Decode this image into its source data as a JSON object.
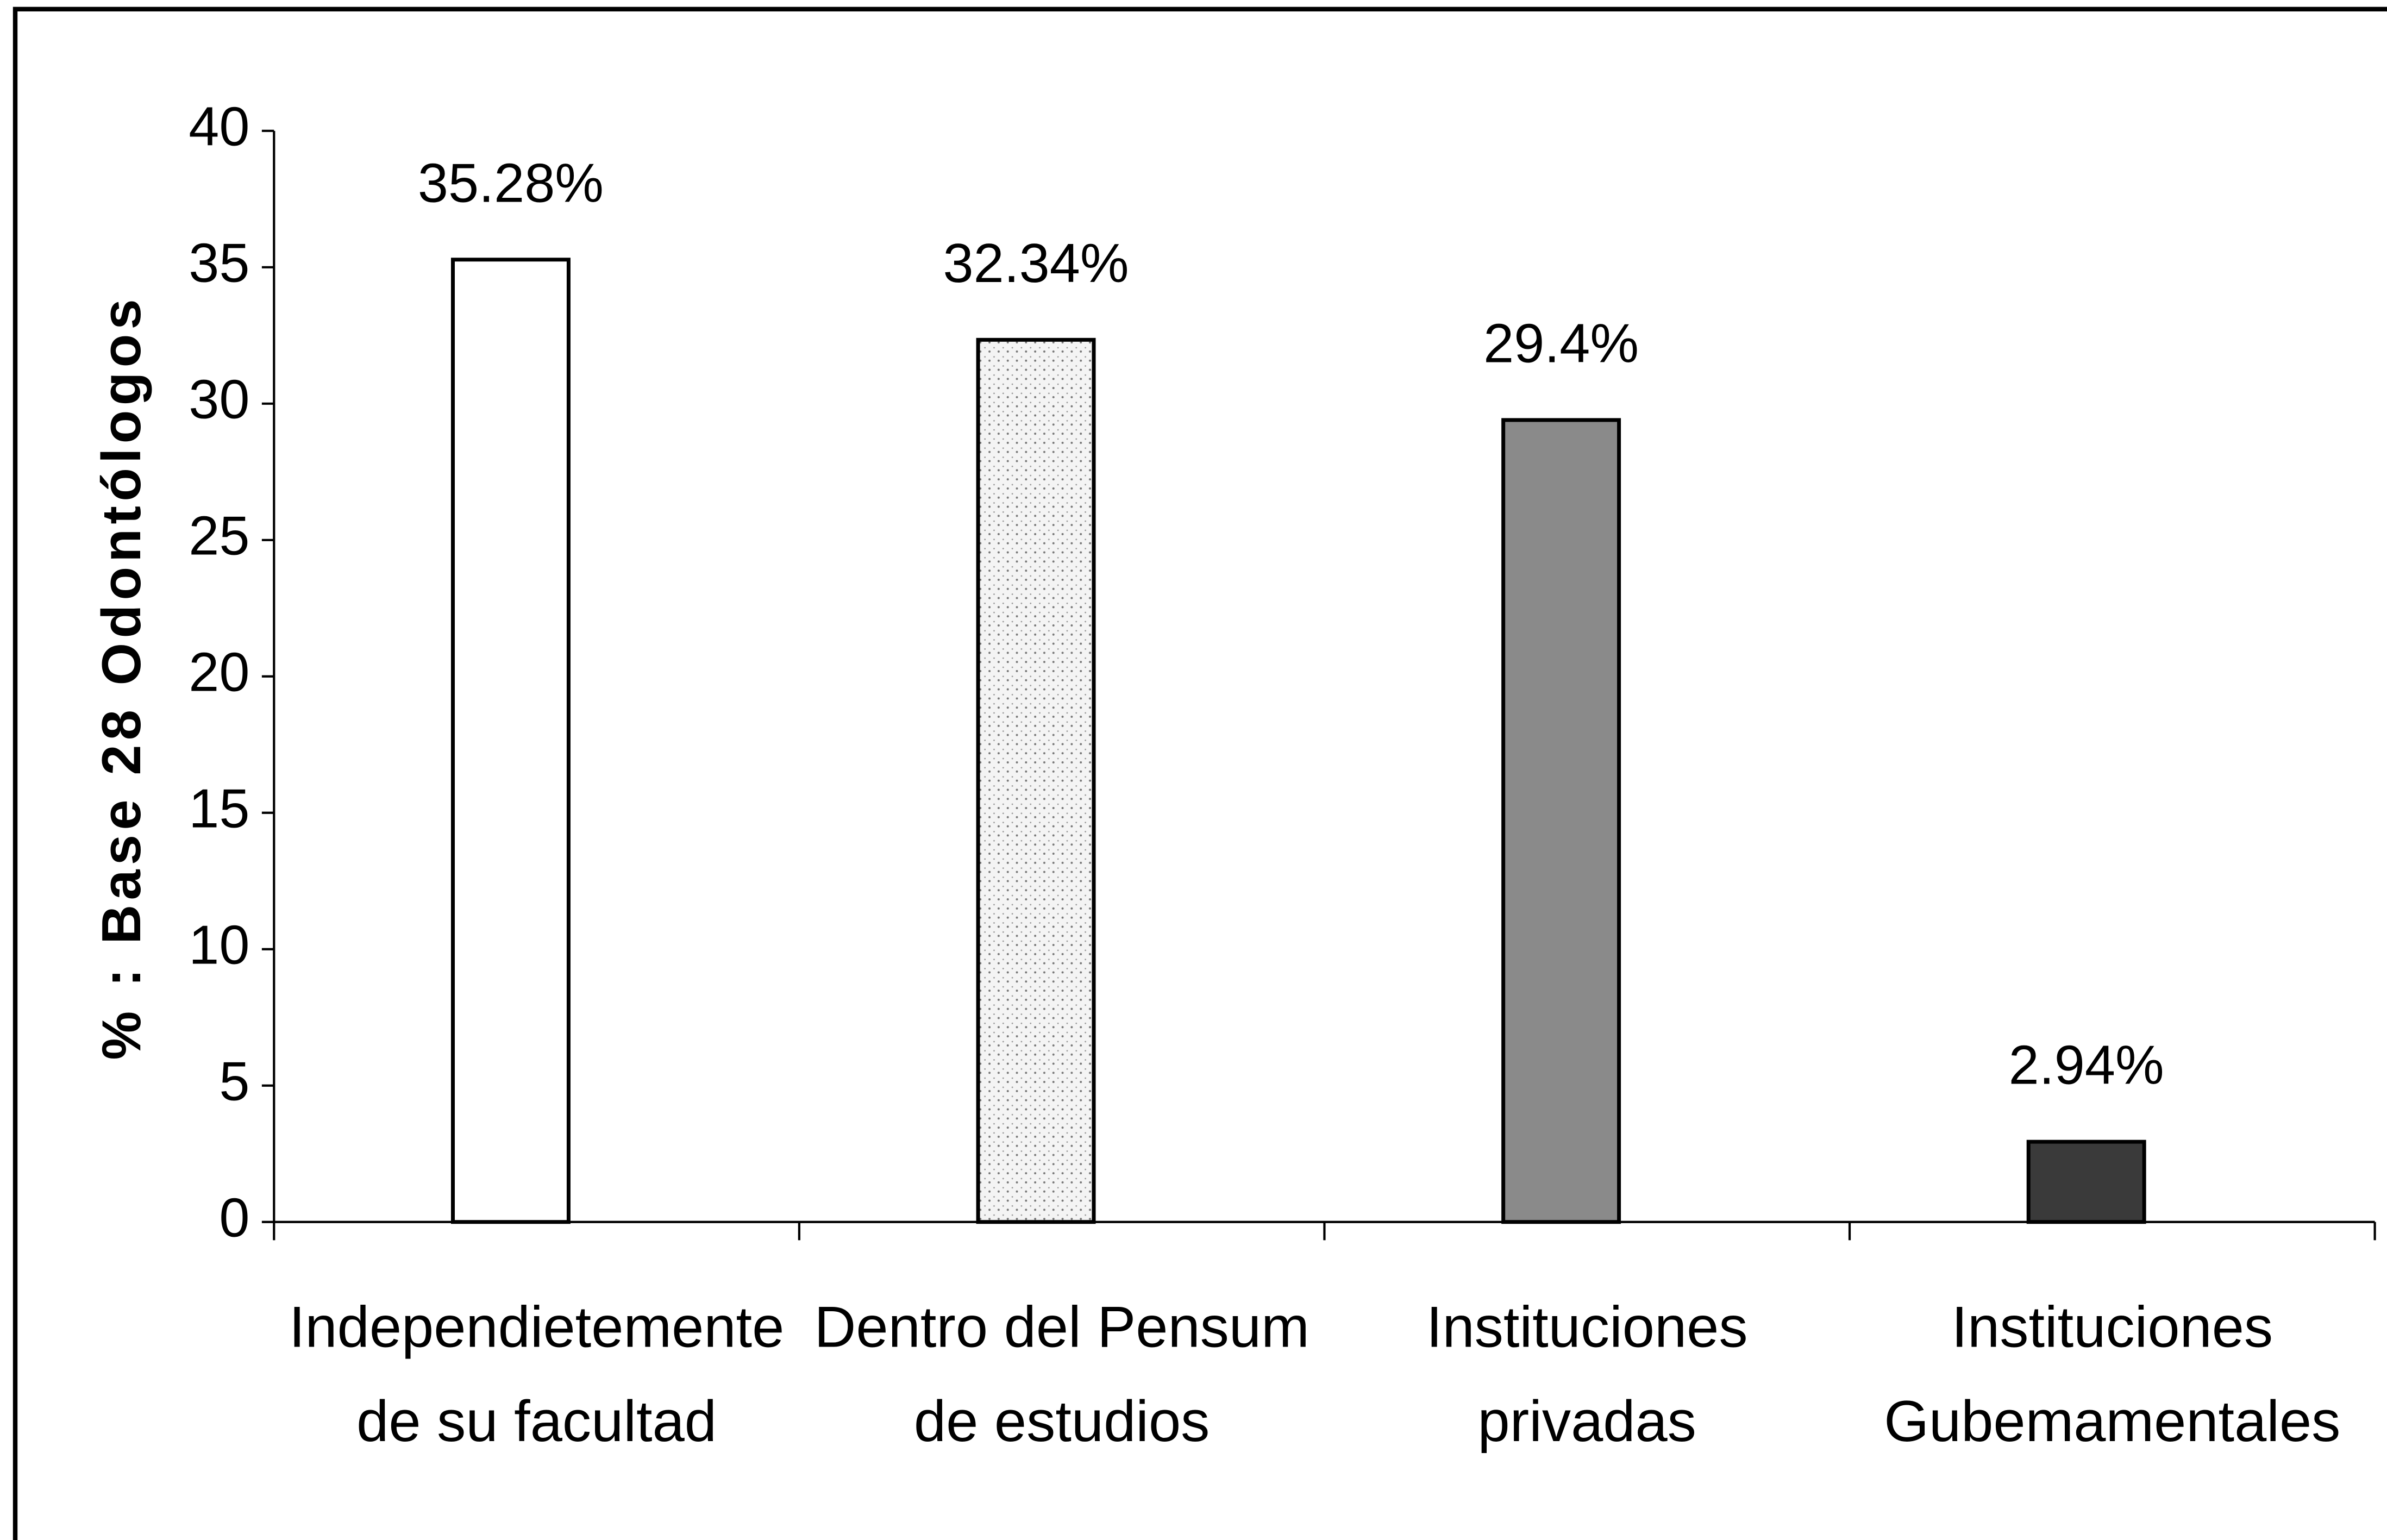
{
  "chart_data": {
    "type": "bar",
    "y_label": "% : Base 28 Odontólogos",
    "categories": [
      [
        "Independietemente",
        "de su facultad"
      ],
      [
        "Dentro del Pensum",
        "de estudios"
      ],
      [
        "Instituciones",
        "privadas"
      ],
      [
        "Instituciones",
        "Gubemamentales"
      ]
    ],
    "values": [
      35.28,
      32.34,
      29.4,
      2.94
    ],
    "value_labels": [
      "35.28%",
      "32.34%",
      "29.4%",
      "2.94%"
    ],
    "colors": [
      "#ffffff",
      "#ececec",
      "#8a8a8a",
      "#3a3a3a"
    ],
    "ylim": [
      0,
      40
    ],
    "yticks": [
      0,
      5,
      10,
      15,
      20,
      25,
      30,
      35,
      40
    ],
    "grid": false
  }
}
